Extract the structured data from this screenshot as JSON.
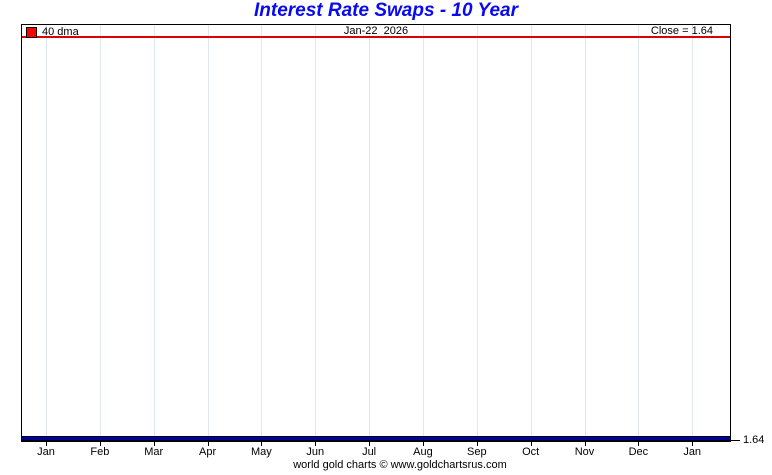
{
  "title": {
    "text": "Interest Rate Swaps - 10 Year"
  },
  "header": {
    "legend": {
      "label": "40 dma"
    },
    "date_label": "Jan-22  2026",
    "close_label": "Close = 1.64"
  },
  "axes": {
    "x_months": [
      "Jan",
      "Feb",
      "Mar",
      "Apr",
      "May",
      "Jun",
      "Jul",
      "Aug",
      "Sep",
      "Oct",
      "Nov",
      "Dec",
      "Jan"
    ],
    "y_right_label": "1.64"
  },
  "footer": {
    "text": "world gold charts © www.goldchartsrus.com"
  },
  "colors": {
    "title": "#0a0af0",
    "header_rule": "#dd0000",
    "legend_swatch": "#ff0000",
    "data_line": "#0000a0",
    "gridline": "#dce7f5",
    "border": "#000000",
    "background": "#ffffff"
  },
  "chart_data": {
    "type": "line",
    "title": "Interest Rate Swaps - 10 Year",
    "x": [
      "Jan",
      "Feb",
      "Mar",
      "Apr",
      "May",
      "Jun",
      "Jul",
      "Aug",
      "Sep",
      "Oct",
      "Nov",
      "Dec",
      "Jan"
    ],
    "series": [
      {
        "name": "40 dma",
        "color": "#0000a0",
        "values": [
          1.64,
          1.64,
          1.64,
          1.64,
          1.64,
          1.64,
          1.64,
          1.64,
          1.64,
          1.64,
          1.64,
          1.64,
          1.64
        ]
      }
    ],
    "annotations": {
      "date": "Jan-22 2026",
      "close": 1.64
    },
    "y_right_ticks": [
      1.64
    ],
    "grid": "vertical-monthly-only",
    "legend_position": "top-left-inside",
    "notes": "Flat 40-day moving average line at 1.64 running along the bottom axis of an otherwise empty plot"
  }
}
